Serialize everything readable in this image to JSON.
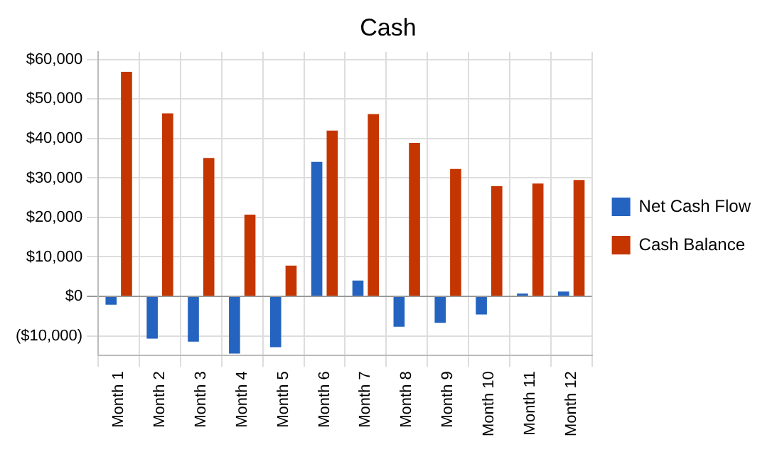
{
  "chart_data": {
    "type": "bar",
    "title": "Cash",
    "categories": [
      "Month 1",
      "Month 2",
      "Month 3",
      "Month 4",
      "Month 5",
      "Month 6",
      "Month 7",
      "Month 8",
      "Month 9",
      "Month 10",
      "Month 11",
      "Month 12"
    ],
    "series": [
      {
        "name": "Net Cash Flow",
        "color": "#2563c0",
        "values": [
          -2100,
          -10700,
          -11500,
          -14500,
          -12900,
          34100,
          4000,
          -7700,
          -6700,
          -4600,
          300,
          1200
        ]
      },
      {
        "name": "Cash Balance",
        "color": "#c43500",
        "values": [
          56900,
          46400,
          35100,
          20700,
          7800,
          42000,
          46200,
          38900,
          32300,
          27900,
          28600,
          29500
        ]
      }
    ],
    "ylim": [
      -15000,
      62000
    ],
    "yticks": [
      {
        "value": -10000,
        "label": "($10,000)"
      },
      {
        "value": 0,
        "label": "$0"
      },
      {
        "value": 10000,
        "label": "$10,000"
      },
      {
        "value": 20000,
        "label": "$20,000"
      },
      {
        "value": 30000,
        "label": "$30,000"
      },
      {
        "value": 40000,
        "label": "$40,000"
      },
      {
        "value": 50000,
        "label": "$50,000"
      },
      {
        "value": 60000,
        "label": "$60,000"
      }
    ],
    "grid": true,
    "legend": "right"
  }
}
